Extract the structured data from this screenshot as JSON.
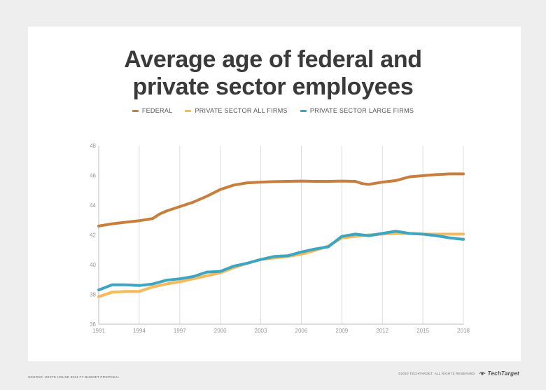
{
  "chart_data": {
    "type": "line",
    "title_lines": [
      "Average age of federal and",
      "private sector employees"
    ],
    "xlabel": "",
    "ylabel": "",
    "xlim": [
      1991,
      2018
    ],
    "ylim": [
      36,
      48
    ],
    "x_ticks": [
      1991,
      1994,
      1997,
      2000,
      2003,
      2006,
      2009,
      2012,
      2015,
      2018
    ],
    "y_ticks": [
      36,
      38,
      40,
      42,
      44,
      46,
      48
    ],
    "grid": "vertical",
    "legend_position": "top-center",
    "series": [
      {
        "name": "FEDERAL",
        "color": "#c87f3e",
        "points": [
          [
            1991,
            42.6
          ],
          [
            1992,
            42.75
          ],
          [
            1993,
            42.85
          ],
          [
            1994,
            42.95
          ],
          [
            1995,
            43.1
          ],
          [
            1995.5,
            43.4
          ],
          [
            1996,
            43.6
          ],
          [
            1997,
            43.9
          ],
          [
            1998,
            44.2
          ],
          [
            1999,
            44.6
          ],
          [
            2000,
            45.05
          ],
          [
            2001,
            45.35
          ],
          [
            2002,
            45.5
          ],
          [
            2003,
            45.55
          ],
          [
            2004,
            45.58
          ],
          [
            2005,
            45.6
          ],
          [
            2006,
            45.62
          ],
          [
            2007,
            45.6
          ],
          [
            2008,
            45.6
          ],
          [
            2009,
            45.62
          ],
          [
            2010,
            45.6
          ],
          [
            2010.5,
            45.45
          ],
          [
            2011,
            45.4
          ],
          [
            2012,
            45.55
          ],
          [
            2013,
            45.65
          ],
          [
            2014,
            45.9
          ],
          [
            2015,
            45.98
          ],
          [
            2016,
            46.05
          ],
          [
            2017,
            46.1
          ],
          [
            2018,
            46.1
          ]
        ]
      },
      {
        "name": "PRIVATE SECTOR ALL FIRMS",
        "color": "#f7b95a",
        "points": [
          [
            1991,
            37.85
          ],
          [
            1992,
            38.15
          ],
          [
            1993,
            38.2
          ],
          [
            1994,
            38.2
          ],
          [
            1995,
            38.5
          ],
          [
            1996,
            38.7
          ],
          [
            1997,
            38.85
          ],
          [
            1998,
            39.05
          ],
          [
            1999,
            39.25
          ],
          [
            2000,
            39.45
          ],
          [
            2001,
            39.8
          ],
          [
            2002,
            40.1
          ],
          [
            2003,
            40.35
          ],
          [
            2004,
            40.45
          ],
          [
            2005,
            40.55
          ],
          [
            2006,
            40.7
          ],
          [
            2007,
            40.95
          ],
          [
            2008,
            41.25
          ],
          [
            2009,
            41.8
          ],
          [
            2010,
            41.9
          ],
          [
            2011,
            42.0
          ],
          [
            2012,
            42.05
          ],
          [
            2013,
            42.1
          ],
          [
            2014,
            42.1
          ],
          [
            2015,
            42.05
          ],
          [
            2016,
            42.05
          ],
          [
            2017,
            42.05
          ],
          [
            2018,
            42.05
          ]
        ]
      },
      {
        "name": "PRIVATE SECTOR LARGE FIRMS",
        "color": "#3ba5c2",
        "points": [
          [
            1991,
            38.3
          ],
          [
            1992,
            38.65
          ],
          [
            1993,
            38.65
          ],
          [
            1994,
            38.6
          ],
          [
            1995,
            38.7
          ],
          [
            1996,
            38.95
          ],
          [
            1997,
            39.05
          ],
          [
            1998,
            39.2
          ],
          [
            1999,
            39.5
          ],
          [
            2000,
            39.55
          ],
          [
            2001,
            39.9
          ],
          [
            2002,
            40.1
          ],
          [
            2003,
            40.35
          ],
          [
            2004,
            40.55
          ],
          [
            2005,
            40.6
          ],
          [
            2006,
            40.85
          ],
          [
            2007,
            41.05
          ],
          [
            2008,
            41.2
          ],
          [
            2009,
            41.9
          ],
          [
            2010,
            42.05
          ],
          [
            2011,
            41.95
          ],
          [
            2012,
            42.1
          ],
          [
            2013,
            42.25
          ],
          [
            2014,
            42.1
          ],
          [
            2015,
            42.05
          ],
          [
            2016,
            41.95
          ],
          [
            2017,
            41.8
          ],
          [
            2018,
            41.7
          ]
        ]
      }
    ]
  },
  "footer": {
    "source": "SOURCE: WHITE HOUSE 2021 FY BUDGET PROPOSAL",
    "copyright": "©2020 TECHTARGET. ALL RIGHTS RESERVED",
    "brand": "TechTarget"
  }
}
